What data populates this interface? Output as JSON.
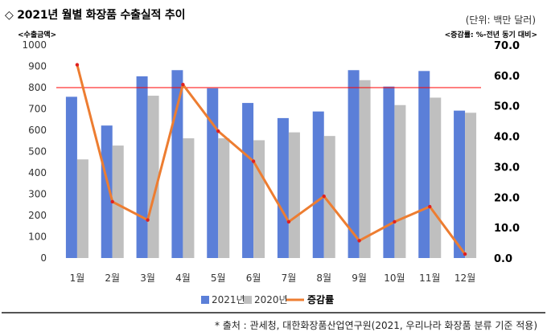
{
  "header": {
    "title": "◇ 2021년 월별 화장품 수출실적 추이",
    "unit": "(단위: 백만 달러)",
    "left_axis_caption": "<수출금액>",
    "right_axis_caption": "<증감률: %-전년 동기 대비>"
  },
  "chart_data": {
    "type": "bar",
    "categories": [
      "1월",
      "2월",
      "3월",
      "4월",
      "5월",
      "6월",
      "7월",
      "8월",
      "9월",
      "10월",
      "11월",
      "12월"
    ],
    "series": [
      {
        "name": "2021년",
        "type": "bar",
        "axis": "left",
        "color": "#5b7fd8",
        "values": [
          757,
          622,
          853,
          882,
          797,
          728,
          657,
          688,
          882,
          805,
          878,
          692
        ]
      },
      {
        "name": "2020년",
        "type": "bar",
        "axis": "left",
        "color": "#bfbfbf",
        "values": [
          463,
          528,
          762,
          562,
          562,
          553,
          590,
          573,
          835,
          718,
          753,
          682
        ]
      },
      {
        "name": "증감률",
        "type": "line",
        "axis": "right",
        "color": "#ed7d31",
        "marker_color": "#e02020",
        "values": [
          63.5,
          18.5,
          12.5,
          57.0,
          41.7,
          31.8,
          11.9,
          20.3,
          5.7,
          11.9,
          16.9,
          1.3
        ]
      }
    ],
    "yleft": {
      "min": 0,
      "max": 1000,
      "step": 100,
      "ticks": [
        "0",
        "100",
        "200",
        "300",
        "400",
        "500",
        "600",
        "700",
        "800",
        "900",
        "1000"
      ]
    },
    "yright": {
      "min": 0,
      "max": 70,
      "step": 10,
      "ticks": [
        "0.0",
        "10.0",
        "20.0",
        "30.0",
        "40.0",
        "50.0",
        "60.0",
        "70.0"
      ]
    },
    "reference_line": {
      "axis": "left",
      "value": 800,
      "color": "#ff0000"
    },
    "grid": false,
    "legend": {
      "position": "bottom",
      "entries": [
        "2021년",
        "2020년",
        "증감률"
      ]
    }
  },
  "footer": {
    "source": "* 출처 : 관세청, 대한화장품산업연구원(2021, 우리나라 화장품 분류 기준 적용)"
  }
}
